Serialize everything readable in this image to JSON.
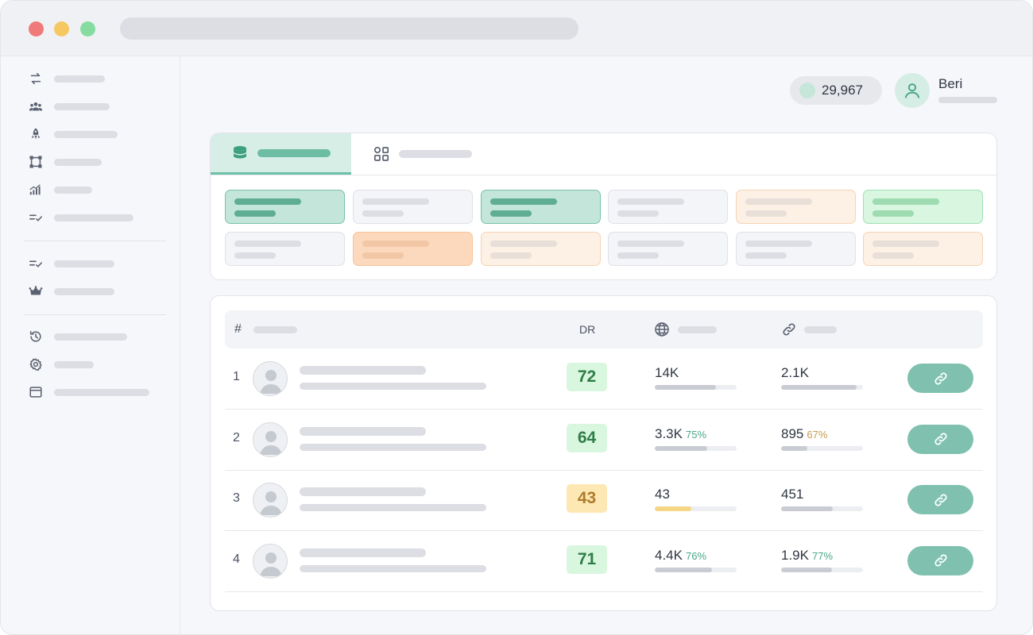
{
  "header": {
    "credits": "29,967",
    "user_name": "Beri"
  },
  "table": {
    "header_hash": "#",
    "header_dr": "DR",
    "rows": [
      {
        "rank": "1",
        "dr": "72",
        "dr_color": "green",
        "traffic": "14K",
        "traffic_pct": "",
        "traffic_fill": 0.75,
        "links": "2.1K",
        "links_pct": "",
        "links_fill": 0.92
      },
      {
        "rank": "2",
        "dr": "64",
        "dr_color": "green",
        "traffic": "3.3K",
        "traffic_pct": "75%",
        "traffic_fill": 0.64,
        "links": "895",
        "links_pct": "67%",
        "links_fill": 0.32
      },
      {
        "rank": "3",
        "dr": "43",
        "dr_color": "yellow",
        "traffic": "43",
        "traffic_pct": "",
        "traffic_fill": 0.45,
        "links": "451",
        "links_pct": "",
        "links_fill": 0.63
      },
      {
        "rank": "4",
        "dr": "71",
        "dr_color": "green",
        "traffic": "4.4K",
        "traffic_pct": "76%",
        "traffic_fill": 0.7,
        "links": "1.9K",
        "links_pct": "77%",
        "links_fill": 0.62
      }
    ]
  },
  "icons": {
    "sidebar": [
      "swap-arrows-icon",
      "users-group-icon",
      "rocket-icon",
      "crop-frame-icon",
      "bar-chart-icon",
      "checklist-icon",
      "checklist-icon",
      "crown-icon",
      "history-icon",
      "settings-gear-icon",
      "browser-window-icon"
    ],
    "tabs": [
      "database-icon",
      "grid-icon"
    ],
    "table_header": [
      "globe-icon",
      "link-icon"
    ],
    "row_action": "link-icon"
  },
  "colors": {
    "accent_teal": "#7fc1ae",
    "dr_green_bg": "#d9f6df",
    "dr_green_text": "#2f7d47",
    "dr_yellow_bg": "#fde7b3",
    "dr_yellow_text": "#b07b2a",
    "pct_teal": "#4aa788",
    "pct_amber": "#c79a4d"
  }
}
